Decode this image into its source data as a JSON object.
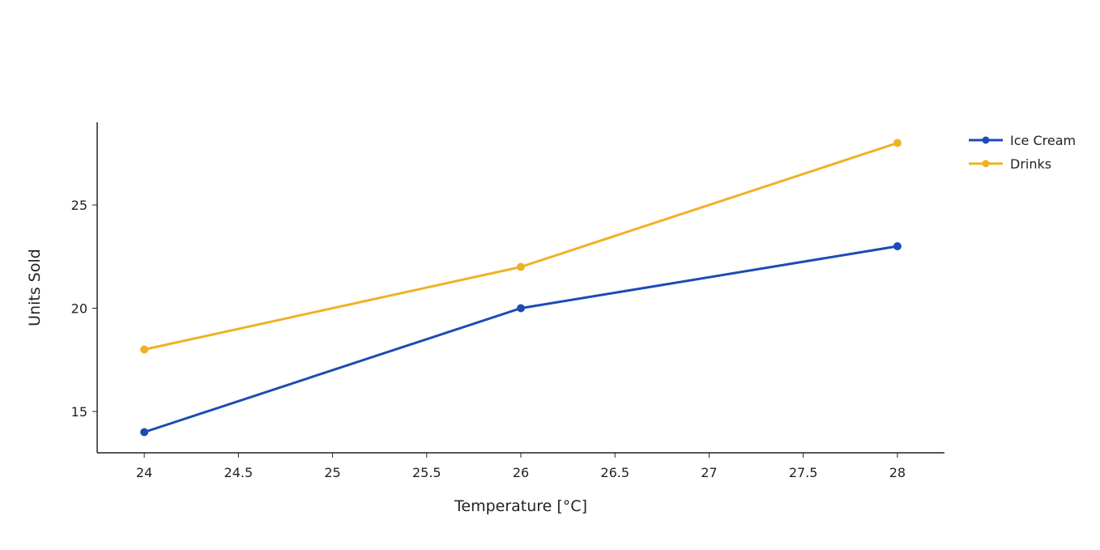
{
  "chart_data": {
    "type": "line",
    "xlabel": "Temperature [°C]",
    "ylabel": "Units Sold",
    "xlim": [
      23.75,
      28.25
    ],
    "ylim": [
      13,
      29
    ],
    "xticks": [
      "24",
      "24.5",
      "25",
      "25.5",
      "26",
      "26.5",
      "27",
      "27.5",
      "28"
    ],
    "yticks": [
      "15",
      "20",
      "25"
    ],
    "grid": false,
    "legend_position": "top-right",
    "series": [
      {
        "name": "Ice Cream",
        "color": "#1c4bb4",
        "x": [
          24,
          26,
          28
        ],
        "y": [
          14,
          20,
          23
        ]
      },
      {
        "name": "Drinks",
        "color": "#efb125",
        "x": [
          24,
          26,
          28
        ],
        "y": [
          18,
          22,
          28
        ]
      }
    ]
  }
}
